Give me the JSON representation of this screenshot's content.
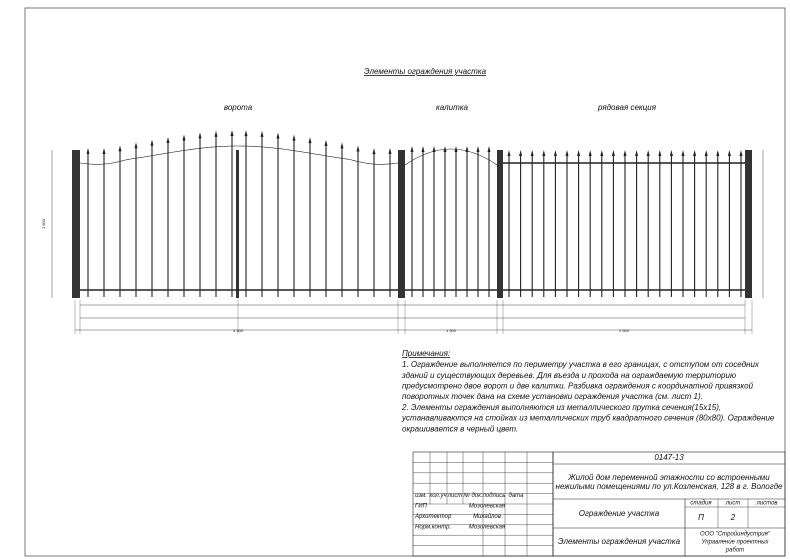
{
  "header": {
    "title": "Элементы ограждения участка"
  },
  "labels": {
    "gate": "ворота",
    "wicket": "калитка",
    "section": "рядовая секция"
  },
  "dimensions": {
    "gate": "4 300",
    "wicket": "1 300",
    "section": "2 500",
    "height": "1 800"
  },
  "notes": {
    "heading": "Примечания:",
    "lines": [
      "1. Ограждение выполняется по периметру участка в его границах, с отступом от соседних",
      "зданий и существующих деревьев. Для въезда и прохода на ограждаемую территорию",
      "предусмотрено двое ворот и две калитки. Разбивка ограждения с координатной привязкой",
      "поворотных точек дана на схеме установки ограждения участка (см. лист 1).",
      "2. Элементы ограждения выполняются из металлического прутка сечения(15х15),",
      "устанавливаются на стойках из металлических труб квадратного сечения (80х80). Ограждение",
      "окрашивается в черный цвет."
    ]
  },
  "stamp": {
    "code": "0147-13",
    "project": [
      "Жилой дом переменной этажности со встроенными",
      "нежилыми помещениями по ул.Козленская, 128 в г. Вологде"
    ],
    "columns": [
      "изм.",
      "кол.уч",
      "лист",
      "№ док.",
      "подпись",
      "дата"
    ],
    "people": [
      [
        "ГИП",
        "Мозолевская"
      ],
      [
        "Архитектор",
        "Михайлов"
      ],
      [
        "Норм.контр.",
        "Мозолевская"
      ]
    ],
    "subject": "Ограждение участка",
    "stage_headers": [
      "стадия",
      "лист",
      "листов"
    ],
    "stage": "П",
    "sheet": "2",
    "sheet_title": "Элементы ограждения участка",
    "company": [
      "ООО \"Стройиндустрия\"",
      "Управление проектных",
      "работ"
    ]
  }
}
